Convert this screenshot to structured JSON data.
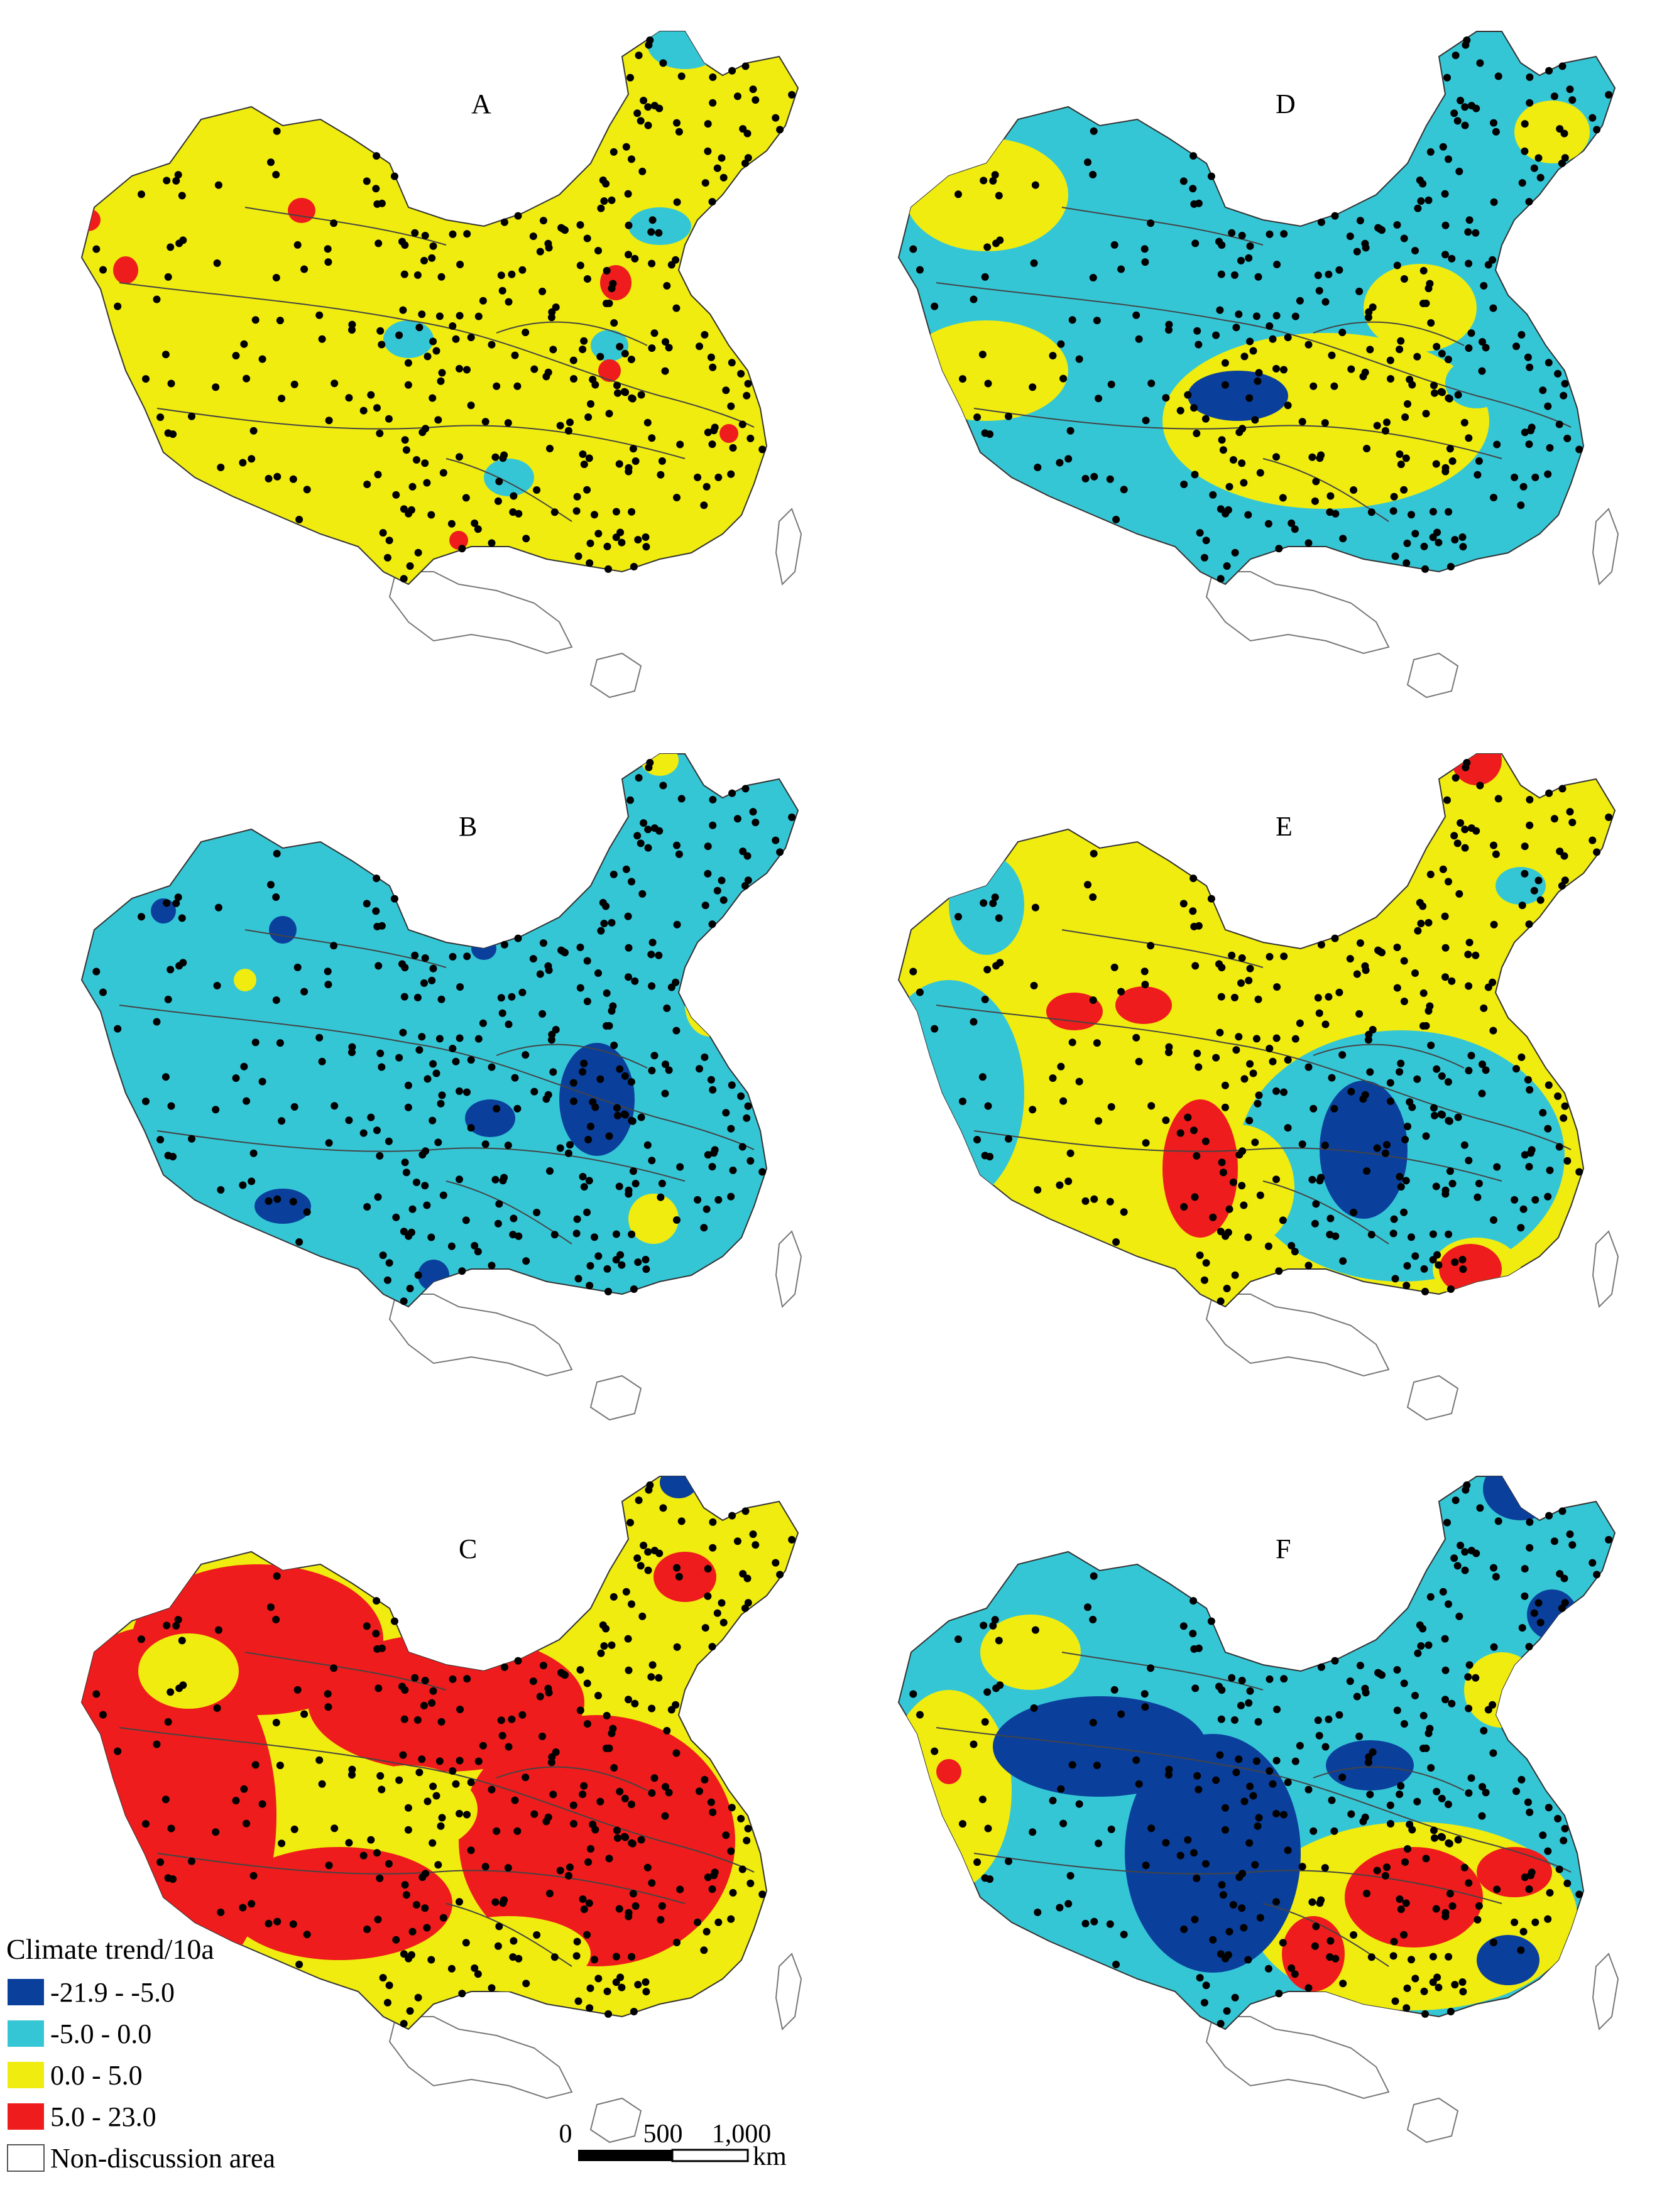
{
  "panels": [
    {
      "label": "A",
      "base": "#f0ec0f",
      "dominant_class": "0.0 - 5.0"
    },
    {
      "label": "D",
      "base": "#35c6d6",
      "dominant_class": "-5.0 - 0.0"
    },
    {
      "label": "B",
      "base": "#35c6d6",
      "dominant_class": "-5.0 - 0.0"
    },
    {
      "label": "E",
      "base": "#f0ec0f",
      "dominant_class": "0.0 - 5.0"
    },
    {
      "label": "C",
      "base": "#f0ec0f",
      "dominant_class": "0.0 - 5.0"
    },
    {
      "label": "F",
      "base": "#35c6d6",
      "dominant_class": "-5.0 - 0.0"
    }
  ],
  "legend": {
    "title": "Climate trend/10a",
    "items": [
      {
        "label": "-21.9 - -5.0",
        "color": "#0b3f9c"
      },
      {
        "label": "-5.0 - 0.0",
        "color": "#35c6d6"
      },
      {
        "label": "0.0 - 5.0",
        "color": "#f0ec0f"
      },
      {
        "label": "5.0 - 23.0",
        "color": "#ee1c1c"
      },
      {
        "label": "Non-discussion area",
        "color": "#ffffff"
      }
    ]
  },
  "scale_bar": {
    "ticks": [
      "0",
      "500",
      "1,000"
    ],
    "unit": "km"
  },
  "colors": {
    "outline": "#333333",
    "station": "#000000"
  }
}
